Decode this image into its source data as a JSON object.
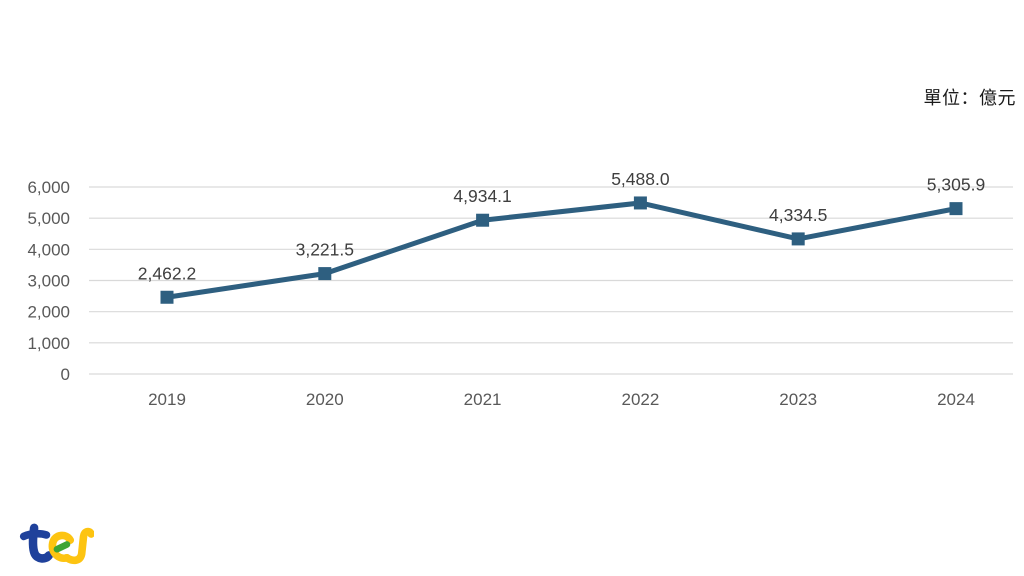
{
  "chart": {
    "unit_label": "單位：億元"
  },
  "chart_data": {
    "type": "line",
    "title": "",
    "xlabel": "",
    "ylabel": "單位：億元",
    "categories": [
      "2019",
      "2020",
      "2021",
      "2022",
      "2023",
      "2024"
    ],
    "values": [
      2462.2,
      3221.5,
      4934.1,
      5488.0,
      4334.5,
      5305.9
    ],
    "value_labels": [
      "2,462.2",
      "3,221.5",
      "4,934.1",
      "5,488.0",
      "4,334.5",
      "5,305.9"
    ],
    "ylim": [
      0,
      6000
    ],
    "ytick_step": 1000,
    "ytick_labels": [
      "0",
      "1,000",
      "2,000",
      "3,000",
      "4,000",
      "5,000",
      "6,000"
    ],
    "grid": true,
    "legend": false,
    "marker": "square",
    "colors": {
      "line": "#2E5F80",
      "marker": "#2E5F80",
      "grid": "#D9D9D9",
      "axis_tick_text": "#595959",
      "data_label_text": "#3F3F3F"
    }
  },
  "logo": {
    "name": "tej",
    "colors": {
      "blue": "#1F419B",
      "yellow": "#FDC411",
      "green": "#3DA435"
    }
  }
}
